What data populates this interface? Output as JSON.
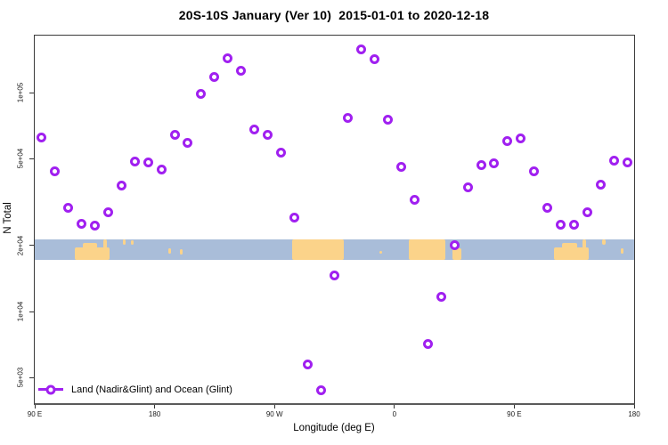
{
  "header": {
    "title": "20S-10S January (Ver 10)  2015-01-01 to 2020-12-18"
  },
  "colors": {
    "marker_purple": "#A020F0",
    "ocean_blue": "#A9BDD9",
    "land_yellow": "#FBD38A",
    "axis_color": "#3B3B3B",
    "tick_color": "#333333"
  },
  "legend": {
    "label": "Land (Nadir&Glint) and Ocean (Glint)"
  },
  "chart_data": {
    "type": "scatter",
    "title": "20S-10S January (Ver 10)  2015-01-01 to 2020-12-18",
    "xlabel": "Longitude (deg E)",
    "ylabel": "N Total",
    "y_scale": "log10",
    "grid": false,
    "legend_position": "bottom-left-inside",
    "xlim": [
      90,
      540
    ],
    "ylim": [
      3800,
      180000
    ],
    "x_ticks": [
      {
        "pos": 90,
        "label": "90 E"
      },
      {
        "pos": 180,
        "label": "180"
      },
      {
        "pos": 270,
        "label": "90 W"
      },
      {
        "pos": 360,
        "label": "0"
      },
      {
        "pos": 450,
        "label": "90 E"
      },
      {
        "pos": 540,
        "label": "180"
      }
    ],
    "y_ticks": [
      {
        "value": 100000,
        "label": "1e+05"
      },
      {
        "value": 50000,
        "label": "5e+04"
      },
      {
        "value": 20000,
        "label": "2e+04"
      },
      {
        "value": 10000,
        "label": "1e+04"
      },
      {
        "value": 5000,
        "label": "5e+03"
      }
    ],
    "series": [
      {
        "name": "Land (Nadir&Glint) and Ocean (Glint)",
        "marker": "open-circle",
        "x": [
          95,
          105,
          115,
          125,
          135,
          145,
          155,
          165,
          175,
          185,
          195,
          205,
          215,
          225,
          235,
          245,
          255,
          265,
          275,
          285,
          295,
          305,
          315,
          325,
          335,
          345,
          355,
          365,
          375,
          385,
          395,
          405,
          415,
          425,
          435,
          445,
          455,
          465,
          475,
          485,
          495,
          505,
          515,
          525,
          535
        ],
        "y": [
          62500,
          43700,
          29700,
          25100,
          24700,
          28400,
          37700,
          48500,
          48100,
          44600,
          64300,
          59000,
          98200,
          118000,
          143000,
          126000,
          68100,
          64300,
          53300,
          26800,
          5740,
          4370,
          14600,
          76900,
          157000,
          142000,
          75500,
          45800,
          32400,
          7130,
          11700,
          20000,
          36900,
          46700,
          47600,
          60200,
          61900,
          43700,
          29700,
          24900,
          24900,
          28400,
          38000,
          49000,
          48100
        ]
      }
    ],
    "map_strip": {
      "description": "horizontal world-map band (20S-10S latitude slice) centered near N=2e+04",
      "center_value": 20000,
      "patches": [
        {
          "x1": 120,
          "x2": 146,
          "t": 0.4,
          "b": 1.0
        },
        {
          "x1": 126,
          "x2": 137,
          "t": 0.18,
          "b": 0.42
        },
        {
          "x1": 141.5,
          "x2": 144,
          "t": 0.0,
          "b": 0.42
        },
        {
          "x1": 156,
          "x2": 158.5,
          "t": 0.0,
          "b": 0.28
        },
        {
          "x1": 162,
          "x2": 164,
          "t": 0.05,
          "b": 0.25
        },
        {
          "x1": 190,
          "x2": 192,
          "t": 0.45,
          "b": 0.7
        },
        {
          "x1": 199,
          "x2": 201,
          "t": 0.5,
          "b": 0.75
        },
        {
          "x1": 283.5,
          "x2": 322,
          "t": 0.0,
          "b": 1.0
        },
        {
          "x1": 371,
          "x2": 398,
          "t": 0.0,
          "b": 1.0
        },
        {
          "x1": 403.5,
          "x2": 410,
          "t": 0.45,
          "b": 1.0
        },
        {
          "x1": 480,
          "x2": 506,
          "t": 0.4,
          "b": 1.0
        },
        {
          "x1": 486,
          "x2": 497,
          "t": 0.18,
          "b": 0.42
        },
        {
          "x1": 501.5,
          "x2": 504,
          "t": 0.0,
          "b": 0.42
        },
        {
          "x1": 516,
          "x2": 518.5,
          "t": 0.0,
          "b": 0.28
        },
        {
          "x1": 530,
          "x2": 532,
          "t": 0.45,
          "b": 0.7
        },
        {
          "x1": 349,
          "x2": 351,
          "t": 0.55,
          "b": 0.72
        }
      ]
    }
  }
}
